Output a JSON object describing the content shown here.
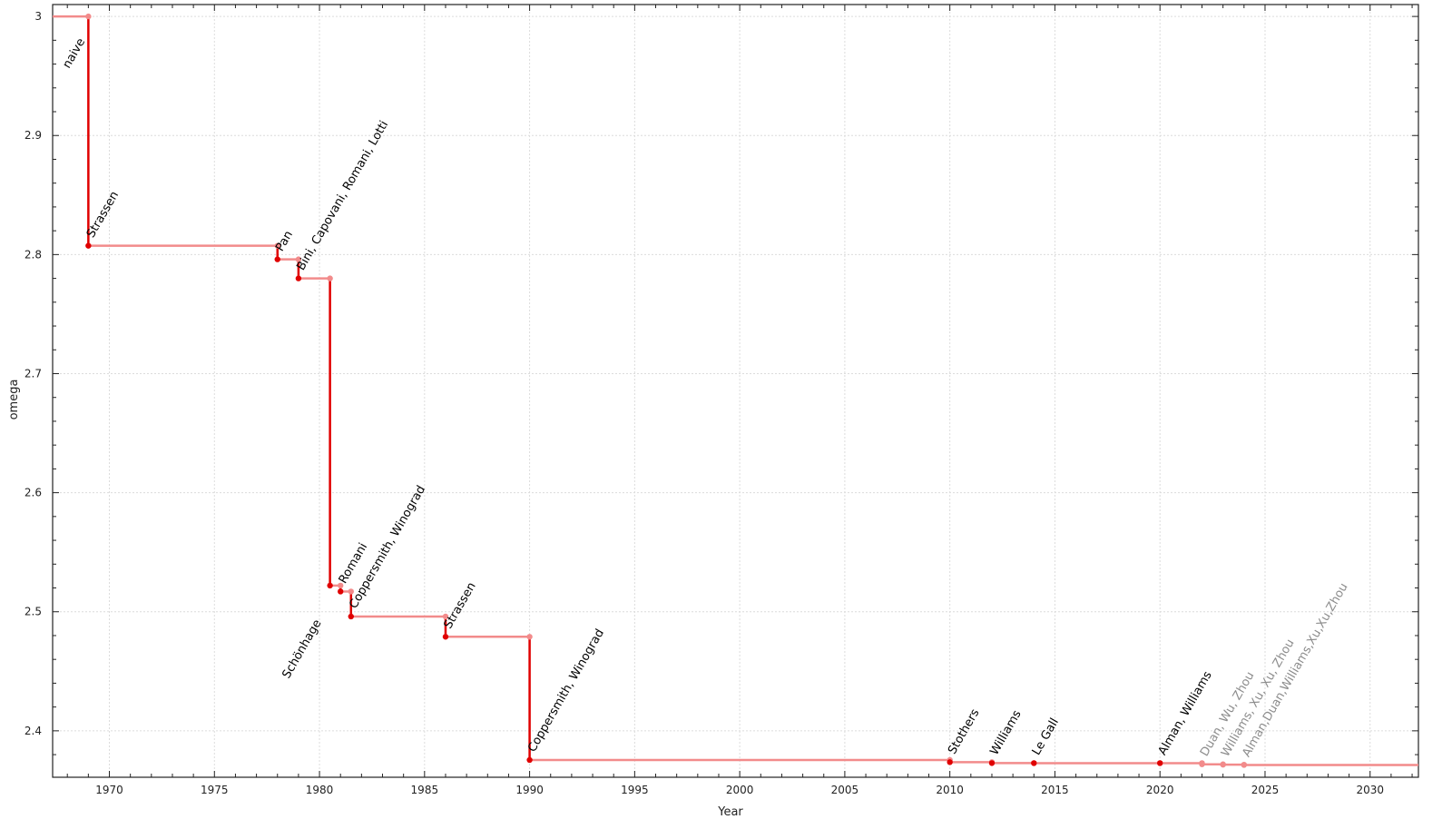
{
  "chart_data": {
    "type": "line",
    "step": true,
    "title": "",
    "xlabel": "Year",
    "ylabel": "omega",
    "xlim": [
      1967.3,
      2032.3
    ],
    "ylim": [
      2.361,
      3.01
    ],
    "xticks": [
      1970,
      1975,
      1980,
      1985,
      1990,
      1995,
      2000,
      2005,
      2010,
      2015,
      2020,
      2025,
      2030
    ],
    "yticks": [
      2.4,
      2.5,
      2.6,
      2.7,
      2.8,
      2.9,
      3
    ],
    "ytick_labels": [
      "2.4",
      "2.5",
      "2.6",
      "2.7",
      "2.8",
      "2.9",
      "3"
    ],
    "grid": true,
    "colors": {
      "step_horizontal": "#f28b8b",
      "step_vertical": "#e00000",
      "marker_new": "#e00000",
      "marker_prev": "#f28b8b",
      "label": "#000000",
      "label_gray": "#8c8c8c"
    },
    "records": [
      {
        "name": "naive",
        "year": null,
        "omega": 3,
        "gray": false
      },
      {
        "name": "Strassen",
        "year": 1969,
        "omega": 2.8074,
        "gray": false
      },
      {
        "name": "Pan",
        "year": 1978,
        "omega": 2.796,
        "gray": false
      },
      {
        "name": "Bini, Capovani, Romani, Lotti",
        "year": 1979,
        "omega": 2.78,
        "gray": false
      },
      {
        "name": "Schönhage",
        "year": 1980.5,
        "omega": 2.522,
        "gray": false
      },
      {
        "name": "Romani",
        "year": 1981,
        "omega": 2.517,
        "gray": false
      },
      {
        "name": "Coppersmith, Winograd",
        "year": 1981.5,
        "omega": 2.496,
        "gray": false
      },
      {
        "name": "Strassen",
        "year": 1986,
        "omega": 2.479,
        "gray": false
      },
      {
        "name": "Coppersmith, Winograd",
        "year": 1990,
        "omega": 2.3755,
        "gray": false
      },
      {
        "name": "Stothers",
        "year": 2010,
        "omega": 2.3737,
        "gray": false
      },
      {
        "name": "Williams",
        "year": 2012,
        "omega": 2.3729,
        "gray": false
      },
      {
        "name": "Le Gall",
        "year": 2014,
        "omega": 2.37286,
        "gray": false
      },
      {
        "name": "Alman, Williams",
        "year": 2020,
        "omega": 2.37286,
        "gray": false
      },
      {
        "name": "Duan, Wu, Zhou",
        "year": 2022,
        "omega": 2.37188,
        "gray": true
      },
      {
        "name": "Williams, Xu, Xu, Zhou",
        "year": 2023,
        "omega": 2.37155,
        "gray": true
      },
      {
        "name": "Alman,Duan,Williams,Xu,Xu,Zhou",
        "year": 2024,
        "omega": 2.37134,
        "gray": true
      }
    ]
  }
}
